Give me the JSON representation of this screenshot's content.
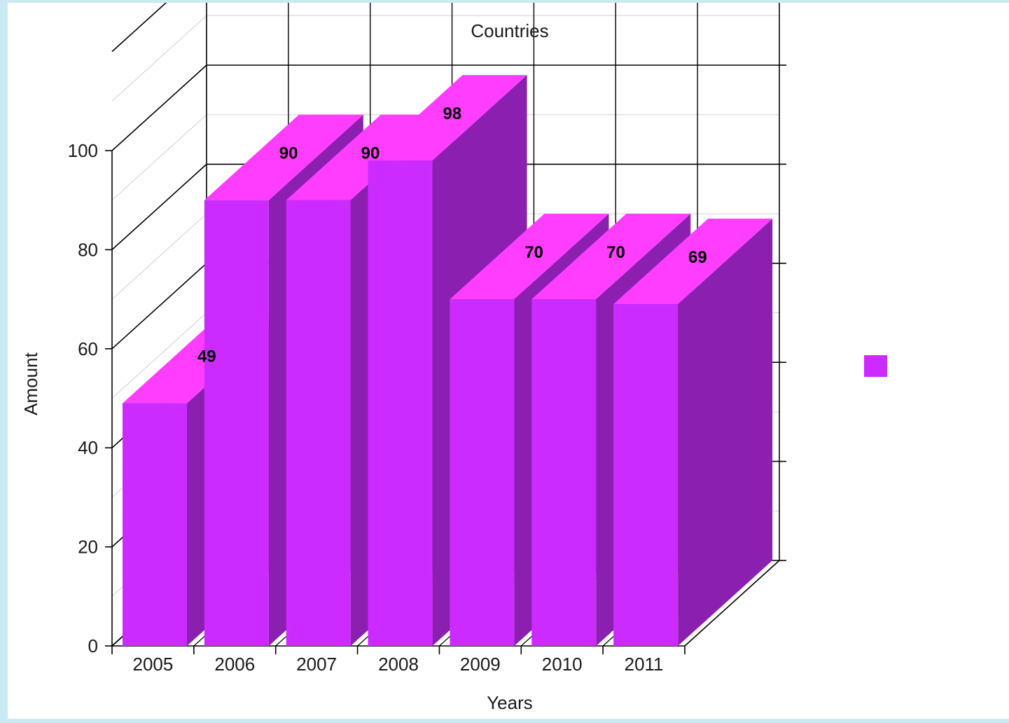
{
  "chart_data": {
    "type": "bar",
    "title": "Countries",
    "xlabel": "Years",
    "ylabel": "Amount",
    "categories": [
      "2005",
      "2006",
      "2007",
      "2008",
      "2009",
      "2010",
      "2011"
    ],
    "series": [
      {
        "values": [
          49,
          90,
          90,
          98,
          70,
          70,
          69
        ]
      }
    ],
    "ylim": [
      0,
      100
    ],
    "yticks": [
      "0",
      "20",
      "40",
      "60",
      "80",
      "100"
    ],
    "grid": true,
    "three_d": true,
    "legend": "right",
    "colors": {
      "front": "#cc2bff",
      "side": "#8b1fb0",
      "top": "#ff3dff",
      "background": "#c9e9f3",
      "panel": "#ffffff"
    }
  }
}
